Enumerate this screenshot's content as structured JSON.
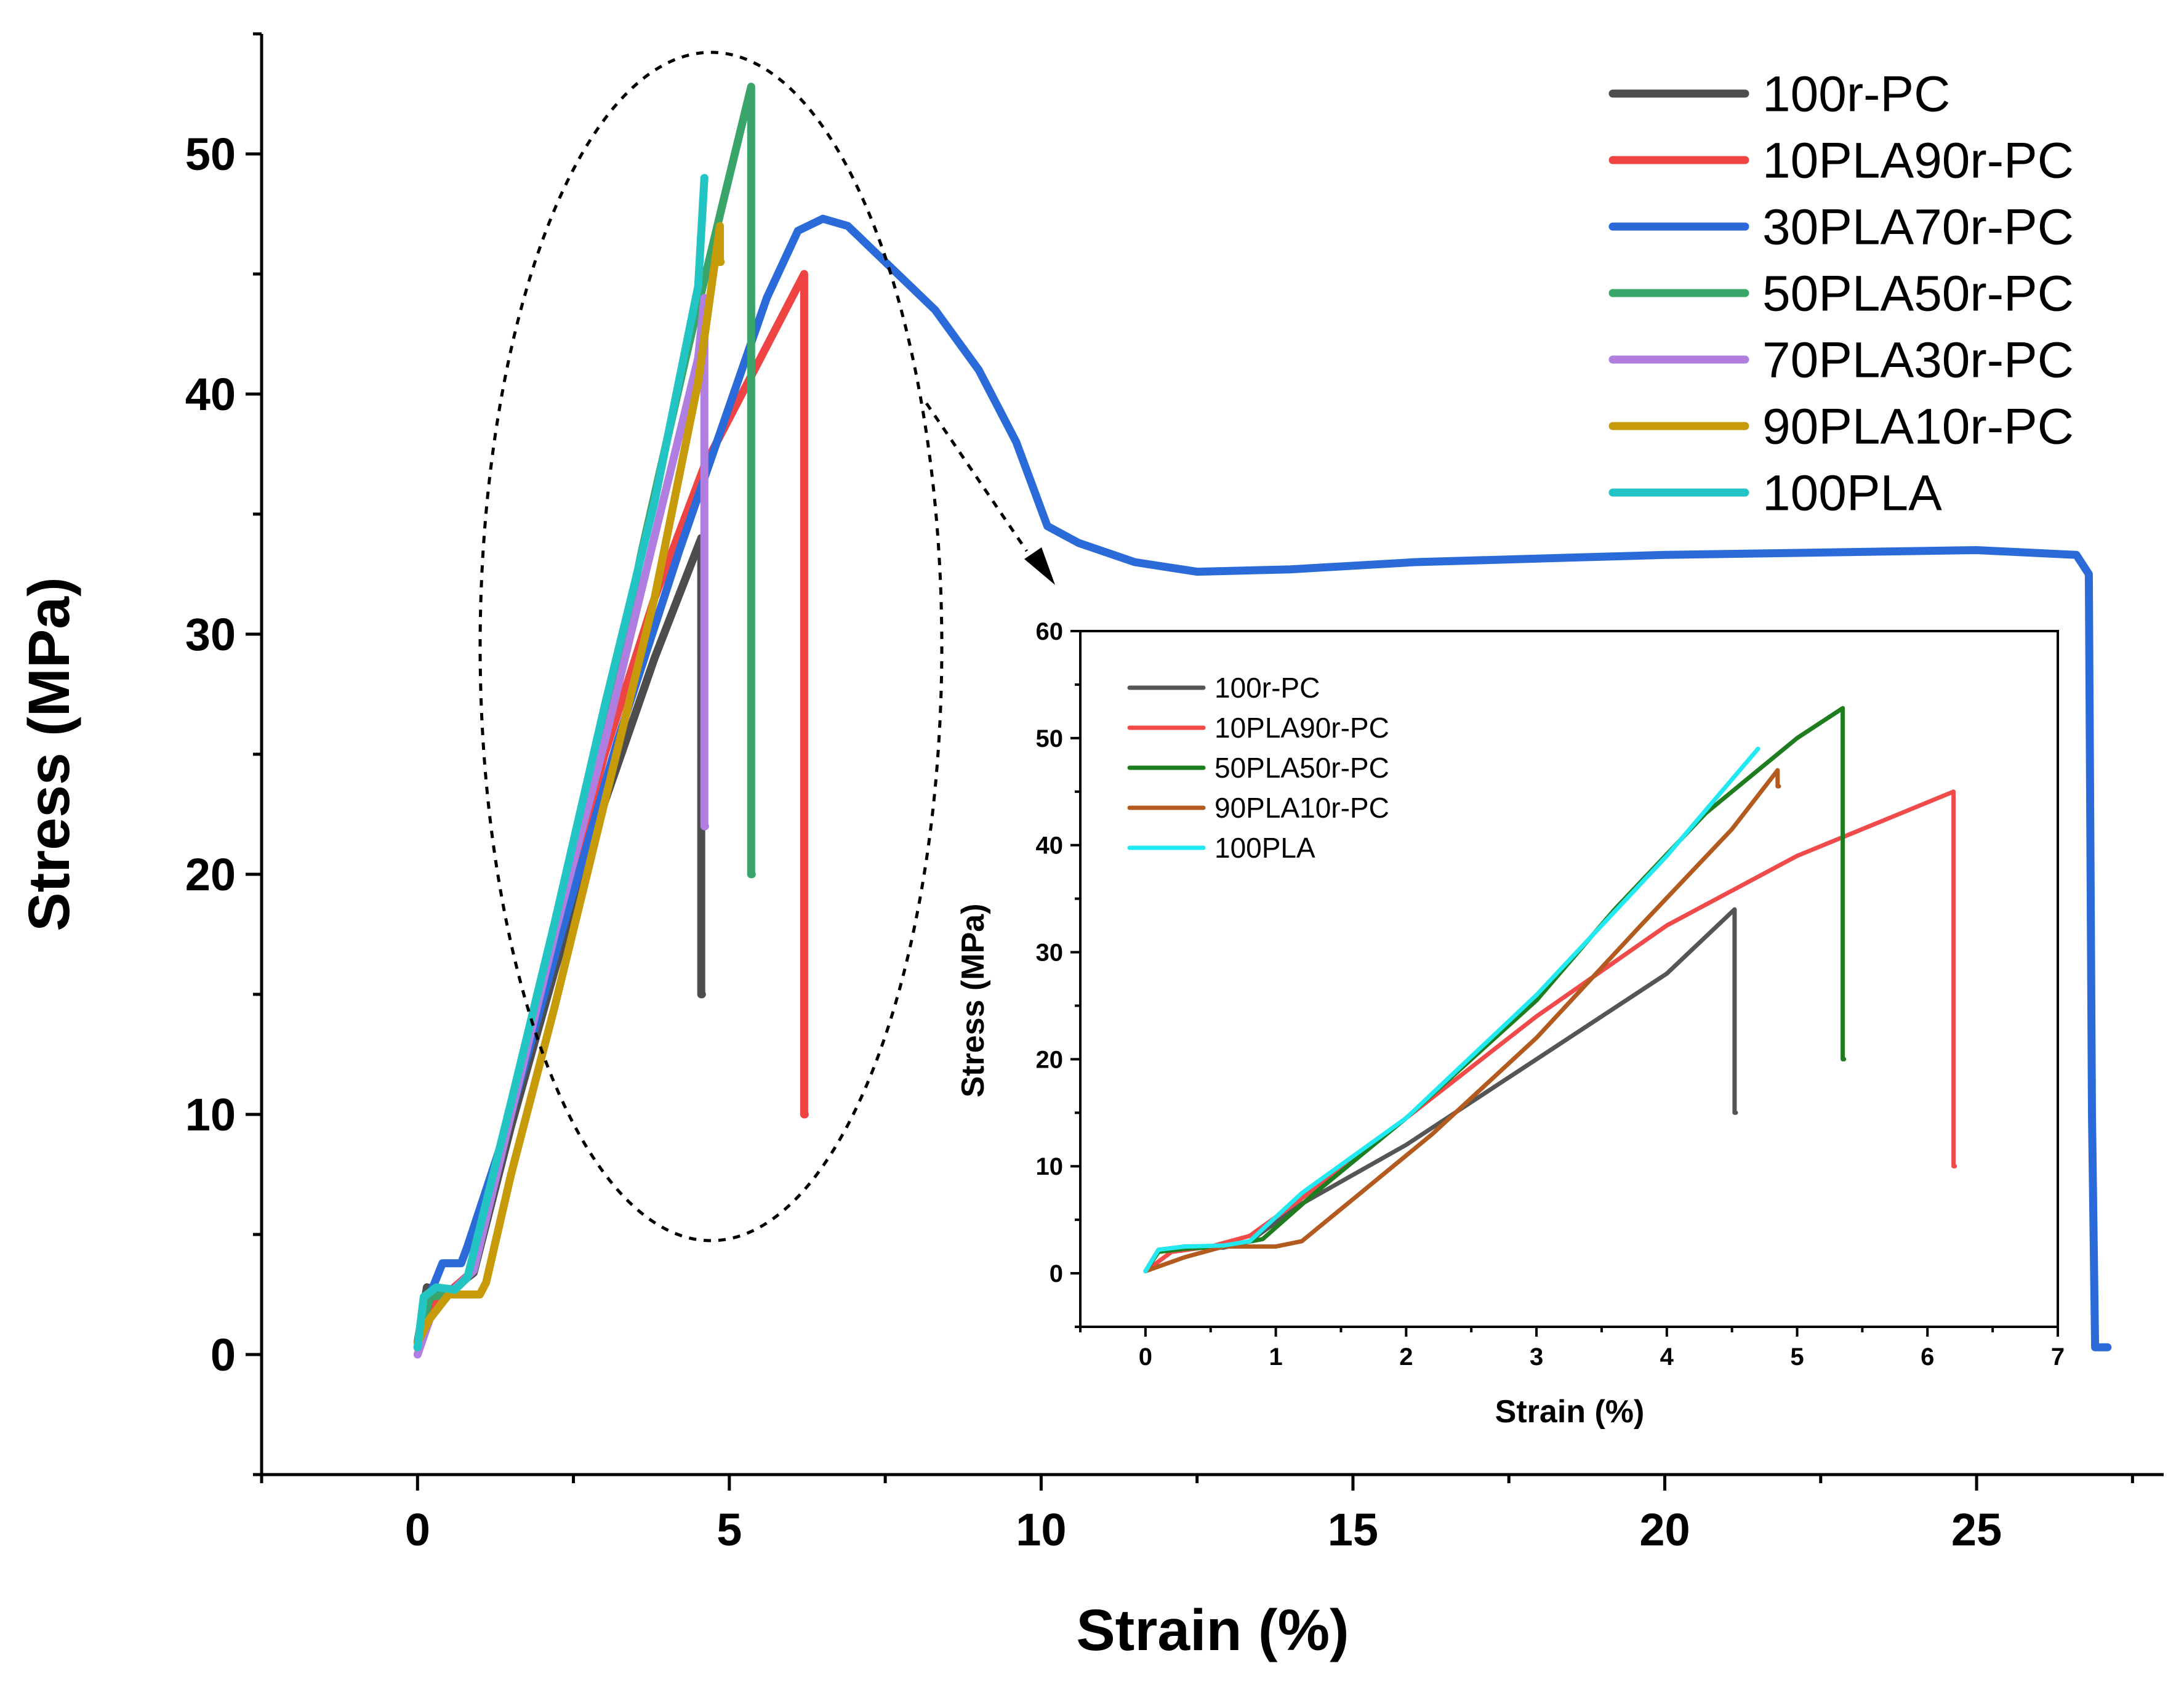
{
  "chart_data": [
    {
      "type": "line",
      "title": "",
      "xlabel": "Strain (%)",
      "ylabel": "Stress (MPa)",
      "xlim": [
        -2.5,
        28
      ],
      "ylim": [
        -5,
        55
      ],
      "xticks": [
        0,
        5,
        10,
        15,
        20,
        25
      ],
      "yticks": [
        0,
        10,
        20,
        30,
        40,
        50
      ],
      "grid": false,
      "legend_position": "top-right",
      "series": [
        {
          "name": "100r-PC",
          "color": "#4d4d4d",
          "x": [
            0,
            0.15,
            0.5,
            0.9,
            1.5,
            2.2,
            3.0,
            3.8,
            4.55,
            4.55,
            4.56
          ],
          "y": [
            0.5,
            2.8,
            2.6,
            3.4,
            9.5,
            16.0,
            23.0,
            29.0,
            34.0,
            15.0,
            15.0
          ]
        },
        {
          "name": "10PLA90r-PC",
          "color": "#ee4444",
          "x": [
            0,
            0.2,
            0.5,
            0.9,
            1.5,
            2.2,
            3.0,
            3.8,
            4.6,
            5.4,
            6.2,
            6.2,
            6.21
          ],
          "y": [
            0.3,
            2.0,
            2.6,
            3.5,
            10.0,
            17.0,
            25.0,
            31.5,
            37.0,
            41.0,
            45.0,
            10.0,
            10.0
          ]
        },
        {
          "name": "30PLA70r-PC",
          "color": "#2a6bd9",
          "x": [
            0,
            0.2,
            0.4,
            0.7,
            0.8,
            1.5,
            2.3,
            3.2,
            4.2,
            5.0,
            5.6,
            6.1,
            6.5,
            6.9,
            7.5,
            8.3,
            9.0,
            9.6,
            10.1,
            10.6,
            11.5,
            12.5,
            14.0,
            16.0,
            20.0,
            25.0,
            26.6,
            26.8,
            26.85,
            26.9,
            27.1
          ],
          "y": [
            0.3,
            2.5,
            3.8,
            3.8,
            4.5,
            10.0,
            17.5,
            25.5,
            33.5,
            39.5,
            44.0,
            46.8,
            47.3,
            47.0,
            45.5,
            43.5,
            41.0,
            38.0,
            34.5,
            33.8,
            33.0,
            32.6,
            32.7,
            33.0,
            33.3,
            33.5,
            33.3,
            32.5,
            10.0,
            0.3,
            0.3
          ]
        },
        {
          "name": "50PLA50r-PC",
          "color": "#3aa56a",
          "x": [
            0,
            0.2,
            0.5,
            0.9,
            1.5,
            2.2,
            3.0,
            3.6,
            4.3,
            4.9,
            5.35,
            5.35,
            5.36
          ],
          "y": [
            0.3,
            2.4,
            2.5,
            3.5,
            10.0,
            17.5,
            26.0,
            33.5,
            41.5,
            48.0,
            52.8,
            20.0,
            20.0
          ]
        },
        {
          "name": "70PLA30r-PC",
          "color": "#b07ee0",
          "x": [
            0,
            0.2,
            0.5,
            0.9,
            1.5,
            2.2,
            3.0,
            3.7,
            4.5,
            4.6,
            4.6,
            4.61
          ],
          "y": [
            0.0,
            1.5,
            2.5,
            3.5,
            10.0,
            17.5,
            25.5,
            33.0,
            41.5,
            44.0,
            22.0,
            22.0
          ]
        },
        {
          "name": "90PLA10r-PC",
          "color": "#c79a0a",
          "x": [
            0,
            0.2,
            0.5,
            1.0,
            1.1,
            1.5,
            2.2,
            3.0,
            3.8,
            4.5,
            4.85,
            4.85,
            4.86
          ],
          "y": [
            0.5,
            1.5,
            2.5,
            2.5,
            3.0,
            7.5,
            14.5,
            23.0,
            31.5,
            40.5,
            47.0,
            45.5,
            45.5
          ]
        },
        {
          "name": "100PLA",
          "color": "#22c4c4",
          "x": [
            0,
            0.1,
            0.3,
            0.6,
            0.8,
            1.5,
            2.2,
            3.0,
            3.8,
            4.5,
            4.6
          ],
          "y": [
            0.3,
            2.4,
            2.8,
            2.7,
            3.2,
            10.5,
            18.0,
            27.0,
            35.5,
            44.5,
            49.0
          ]
        }
      ]
    },
    {
      "type": "line",
      "title": "",
      "xlabel": "Strain (%)",
      "ylabel": "Stress (MPa)",
      "xlim": [
        -0.5,
        7
      ],
      "ylim": [
        -5,
        60
      ],
      "xticks": [
        0,
        1,
        2,
        3,
        4,
        5,
        6,
        7
      ],
      "yticks": [
        0,
        10,
        20,
        30,
        40,
        50,
        60
      ],
      "grid": false,
      "legend_position": "top-left",
      "series": [
        {
          "name": "100r-PC",
          "color": "#555555",
          "x": [
            0,
            0.1,
            0.3,
            0.6,
            0.8,
            1.2,
            2.0,
            3.0,
            4.0,
            4.52,
            4.52,
            4.53
          ],
          "y": [
            0.2,
            2.2,
            2.5,
            2.4,
            3.0,
            6.5,
            12.0,
            20.0,
            28.0,
            34.0,
            15.0,
            15.0
          ]
        },
        {
          "name": "10PLA90r-PC",
          "color": "#f04a4a",
          "x": [
            0,
            0.2,
            0.5,
            0.8,
            1.2,
            2.0,
            3.0,
            4.0,
            5.0,
            6.2,
            6.2,
            6.21
          ],
          "y": [
            0.2,
            2.0,
            2.5,
            3.5,
            7.0,
            14.5,
            24.0,
            32.5,
            39.0,
            45.0,
            10.0,
            10.0
          ]
        },
        {
          "name": "50PLA50r-PC",
          "color": "#1e7d1e",
          "x": [
            0,
            0.1,
            0.3,
            0.6,
            0.9,
            1.3,
            2.0,
            3.0,
            3.6,
            4.3,
            5.0,
            5.35,
            5.35,
            5.36
          ],
          "y": [
            0.2,
            2.0,
            2.3,
            2.5,
            3.2,
            7.5,
            14.5,
            25.5,
            34.0,
            43.0,
            50.0,
            52.8,
            20.0,
            20.0
          ]
        },
        {
          "name": "90PLA10r-PC",
          "color": "#b35a1f",
          "x": [
            0,
            0.3,
            0.6,
            1.0,
            1.2,
            1.6,
            2.2,
            3.0,
            3.8,
            4.5,
            4.85,
            4.85,
            4.86
          ],
          "y": [
            0.2,
            1.5,
            2.5,
            2.5,
            3.0,
            7.0,
            13.0,
            22.0,
            32.5,
            41.5,
            47.0,
            45.5,
            45.5
          ]
        },
        {
          "name": "100PLA",
          "color": "#22e8f2",
          "x": [
            0,
            0.1,
            0.3,
            0.6,
            0.8,
            1.2,
            2.0,
            3.0,
            4.0,
            4.7
          ],
          "y": [
            0.2,
            2.2,
            2.5,
            2.6,
            3.0,
            7.5,
            14.5,
            26.0,
            39.0,
            49.0
          ]
        }
      ]
    }
  ]
}
